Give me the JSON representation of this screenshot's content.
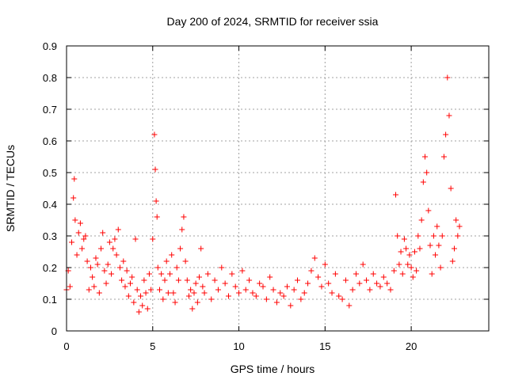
{
  "chart_data": {
    "type": "scatter",
    "title": "Day 200 of 2024, SRMTID for receiver ssia",
    "xlabel": "GPS time / hours",
    "ylabel": "SRMTID / TECUs",
    "xlim": [
      0,
      24.5
    ],
    "ylim": [
      0,
      0.9
    ],
    "xticks": [
      0,
      5,
      10,
      15,
      20
    ],
    "xtick_labels": [
      "0",
      "5",
      "10",
      "15",
      "20"
    ],
    "yticks": [
      0,
      0.1,
      0.2,
      0.3,
      0.4,
      0.5,
      0.6,
      0.7,
      0.8,
      0.9
    ],
    "ytick_labels": [
      "0",
      "0.1",
      "0.2",
      "0.3",
      "0.4",
      "0.5",
      "0.6",
      "0.7",
      "0.8",
      "0.9"
    ],
    "grid": true,
    "marker": "plus",
    "color": "#ff0000",
    "series": [
      {
        "name": "SRMTID",
        "x": [
          0.0,
          0.1,
          0.2,
          0.3,
          0.4,
          0.45,
          0.5,
          0.6,
          0.7,
          0.8,
          0.9,
          1.0,
          1.1,
          1.2,
          1.3,
          1.4,
          1.5,
          1.6,
          1.7,
          1.8,
          1.9,
          2.0,
          2.1,
          2.2,
          2.3,
          2.4,
          2.5,
          2.6,
          2.7,
          2.8,
          2.9,
          3.0,
          3.1,
          3.2,
          3.3,
          3.4,
          3.5,
          3.6,
          3.7,
          3.8,
          3.9,
          4.0,
          4.1,
          4.2,
          4.3,
          4.4,
          4.5,
          4.6,
          4.7,
          4.8,
          4.9,
          5.0,
          5.1,
          5.15,
          5.2,
          5.25,
          5.3,
          5.4,
          5.5,
          5.6,
          5.7,
          5.8,
          5.9,
          6.0,
          6.1,
          6.2,
          6.3,
          6.4,
          6.5,
          6.6,
          6.7,
          6.8,
          6.9,
          7.0,
          7.1,
          7.2,
          7.3,
          7.4,
          7.5,
          7.6,
          7.7,
          7.8,
          7.9,
          8.0,
          8.2,
          8.4,
          8.6,
          8.8,
          9.0,
          9.2,
          9.4,
          9.6,
          9.8,
          10.0,
          10.2,
          10.4,
          10.6,
          10.8,
          11.0,
          11.2,
          11.4,
          11.6,
          11.8,
          12.0,
          12.2,
          12.4,
          12.6,
          12.8,
          13.0,
          13.2,
          13.4,
          13.6,
          13.8,
          14.0,
          14.2,
          14.4,
          14.6,
          14.8,
          15.0,
          15.2,
          15.4,
          15.6,
          15.8,
          16.0,
          16.2,
          16.4,
          16.6,
          16.8,
          17.0,
          17.2,
          17.4,
          17.6,
          17.8,
          18.0,
          18.2,
          18.4,
          18.6,
          18.8,
          19.0,
          19.1,
          19.2,
          19.3,
          19.4,
          19.5,
          19.6,
          19.7,
          19.8,
          19.9,
          20.0,
          20.1,
          20.2,
          20.3,
          20.4,
          20.5,
          20.6,
          20.7,
          20.8,
          20.9,
          21.0,
          21.1,
          21.2,
          21.3,
          21.4,
          21.5,
          21.6,
          21.7,
          21.8,
          21.9,
          22.0,
          22.1,
          22.2,
          22.3,
          22.4,
          22.5,
          22.6,
          22.7,
          22.8
        ],
        "y": [
          0.13,
          0.19,
          0.14,
          0.28,
          0.42,
          0.48,
          0.35,
          0.24,
          0.31,
          0.34,
          0.26,
          0.29,
          0.3,
          0.22,
          0.13,
          0.2,
          0.17,
          0.14,
          0.23,
          0.21,
          0.12,
          0.26,
          0.31,
          0.19,
          0.15,
          0.21,
          0.28,
          0.18,
          0.26,
          0.29,
          0.24,
          0.32,
          0.2,
          0.16,
          0.22,
          0.14,
          0.19,
          0.11,
          0.15,
          0.17,
          0.09,
          0.29,
          0.13,
          0.06,
          0.11,
          0.08,
          0.16,
          0.12,
          0.07,
          0.18,
          0.13,
          0.29,
          0.62,
          0.51,
          0.41,
          0.36,
          0.2,
          0.13,
          0.18,
          0.1,
          0.16,
          0.22,
          0.12,
          0.18,
          0.24,
          0.12,
          0.09,
          0.2,
          0.16,
          0.26,
          0.32,
          0.36,
          0.22,
          0.16,
          0.11,
          0.13,
          0.07,
          0.12,
          0.15,
          0.09,
          0.17,
          0.26,
          0.14,
          0.12,
          0.18,
          0.1,
          0.16,
          0.13,
          0.2,
          0.15,
          0.11,
          0.18,
          0.14,
          0.12,
          0.19,
          0.13,
          0.16,
          0.12,
          0.11,
          0.15,
          0.14,
          0.1,
          0.17,
          0.13,
          0.09,
          0.12,
          0.11,
          0.14,
          0.08,
          0.13,
          0.16,
          0.1,
          0.12,
          0.15,
          0.19,
          0.23,
          0.17,
          0.14,
          0.21,
          0.15,
          0.12,
          0.18,
          0.11,
          0.1,
          0.16,
          0.08,
          0.13,
          0.18,
          0.15,
          0.21,
          0.16,
          0.13,
          0.18,
          0.15,
          0.14,
          0.17,
          0.15,
          0.13,
          0.19,
          0.43,
          0.3,
          0.21,
          0.25,
          0.18,
          0.29,
          0.26,
          0.21,
          0.24,
          0.2,
          0.17,
          0.25,
          0.19,
          0.3,
          0.26,
          0.35,
          0.47,
          0.55,
          0.5,
          0.38,
          0.27,
          0.18,
          0.3,
          0.24,
          0.33,
          0.27,
          0.2,
          0.3,
          0.55,
          0.62,
          0.8,
          0.68,
          0.45,
          0.22,
          0.26,
          0.35,
          0.3,
          0.33
        ]
      }
    ]
  }
}
